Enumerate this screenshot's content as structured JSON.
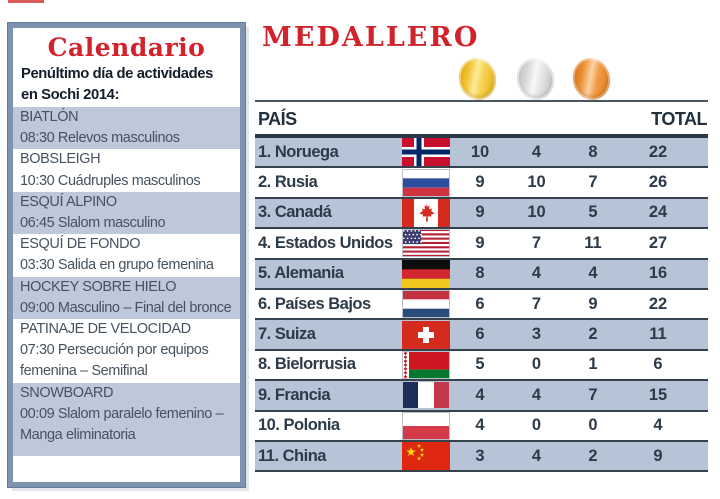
{
  "calendar": {
    "title": "Calendario",
    "subtitle": "Penúltimo día de actividades en Sochi 2014:",
    "items": [
      {
        "sport": "BIATLÓN",
        "detail": "08:30 Relevos masculinos"
      },
      {
        "sport": "BOBSLEIGH",
        "detail": "10:30 Cuádruples masculinos"
      },
      {
        "sport": "ESQUÍ ALPINO",
        "detail": "06:45 Slalom masculino"
      },
      {
        "sport": "ESQUÍ DE FONDO",
        "detail": "03:30 Salida en grupo femenina"
      },
      {
        "sport": "HOCKEY SOBRE HIELO",
        "detail": "09:00 Masculino – Final del bronce"
      },
      {
        "sport": "PATINAJE DE VELOCIDAD",
        "detail": "07:30 Persecución por equipos femenina – Semifinal"
      },
      {
        "sport": "SNOWBOARD",
        "detail": "00:09 Slalom paralelo femenino – Manga eliminatoria"
      }
    ]
  },
  "medallero": {
    "title": "MEDALLERO",
    "medal_icons": [
      {
        "name": "gold-medal-icon",
        "color": "#f2c336"
      },
      {
        "name": "silver-medal-icon",
        "color": "#dadadc"
      },
      {
        "name": "bronze-medal-icon",
        "color": "#ec8f33"
      }
    ],
    "table": {
      "col_country": "PAÍS",
      "col_total": "TOTAL",
      "rows": [
        {
          "rank": "1.",
          "country": "Noruega",
          "flag": "norway",
          "gold": 10,
          "silver": 4,
          "bronze": 8,
          "total": 22
        },
        {
          "rank": "2.",
          "country": "Rusia",
          "flag": "russia",
          "gold": 9,
          "silver": 10,
          "bronze": 7,
          "total": 26
        },
        {
          "rank": "3.",
          "country": "Canadá",
          "flag": "canada",
          "gold": 9,
          "silver": 10,
          "bronze": 5,
          "total": 24
        },
        {
          "rank": "4.",
          "country": "Estados Unidos",
          "flag": "usa",
          "gold": 9,
          "silver": 7,
          "bronze": 11,
          "total": 27
        },
        {
          "rank": "5.",
          "country": "Alemania",
          "flag": "germany",
          "gold": 8,
          "silver": 4,
          "bronze": 4,
          "total": 16
        },
        {
          "rank": "6.",
          "country": "Países Bajos",
          "flag": "netherlands",
          "gold": 6,
          "silver": 7,
          "bronze": 9,
          "total": 22
        },
        {
          "rank": "7.",
          "country": "Suiza",
          "flag": "switzerland",
          "gold": 6,
          "silver": 3,
          "bronze": 2,
          "total": 11
        },
        {
          "rank": "8.",
          "country": "Bielorrusia",
          "flag": "belarus",
          "gold": 5,
          "silver": 0,
          "bronze": 1,
          "total": 6
        },
        {
          "rank": "9.",
          "country": "Francia",
          "flag": "france",
          "gold": 4,
          "silver": 4,
          "bronze": 7,
          "total": 15
        },
        {
          "rank": "10.",
          "country": "Polonia",
          "flag": "poland",
          "gold": 4,
          "silver": 0,
          "bronze": 0,
          "total": 4
        },
        {
          "rank": "11.",
          "country": "China",
          "flag": "china",
          "gold": 3,
          "silver": 4,
          "bronze": 2,
          "total": 9
        }
      ]
    }
  },
  "colors": {
    "accent_red": "#d2232c",
    "row_blue": "#b7c3d7",
    "calendar_item_blue": "#bdc8da",
    "line_dark": "#35424e",
    "border_steel_blue": "#7d93af"
  }
}
